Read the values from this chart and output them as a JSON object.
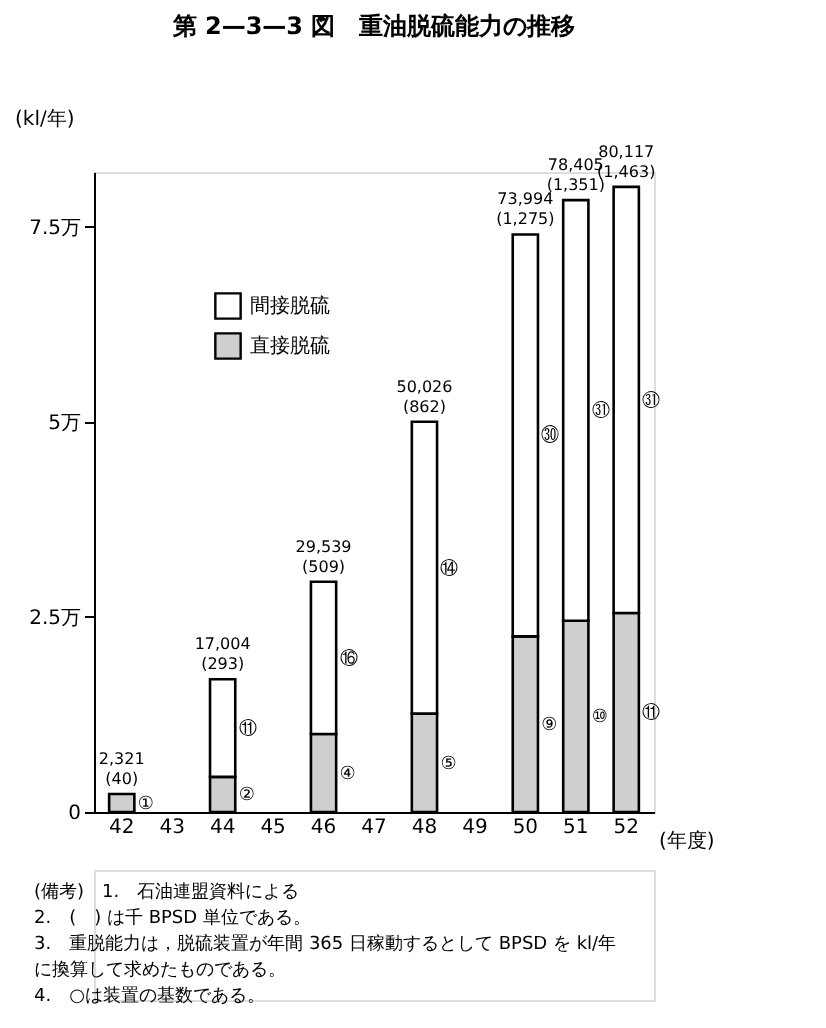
{
  "chart_data": {
    "type": "bar",
    "title": "第 2—3—3 図　重油脱硫能力の推移",
    "ylabel": "(kl/年)",
    "xlabel": "(年度)",
    "categories": [
      "42",
      "43",
      "44",
      "45",
      "46",
      "47",
      "48",
      "49",
      "50",
      "51",
      "52"
    ],
    "stacked": true,
    "series": [
      {
        "name": "直接脱硫",
        "color": "#cfcfcf",
        "values": [
          0.23,
          null,
          0.45,
          null,
          1.0,
          null,
          1.26,
          null,
          2.25,
          2.45,
          2.55
        ],
        "value_labels": [
          "①",
          null,
          "②",
          null,
          "④",
          null,
          "⑤",
          null,
          "⑨",
          "⑩",
          "⑪"
        ]
      },
      {
        "name": "間接脱硫",
        "color": "#ffffff",
        "values": [
          null,
          null,
          1.25,
          null,
          1.95,
          null,
          3.74,
          null,
          5.15,
          5.39,
          5.46
        ],
        "value_labels": [
          null,
          null,
          "⑪",
          null,
          "⑯",
          null,
          "⑭",
          null,
          "㉚",
          "㉛",
          "㉛"
        ]
      }
    ],
    "totals": [
      "2,321\n(40)",
      null,
      "17,004\n(293)",
      null,
      "29,539\n(509)",
      null,
      "50,026\n(862)",
      null,
      "73,994\n(1,275)",
      "78,405\n(1,351)",
      "80,117\n(1,463)"
    ],
    "ylim": [
      0,
      8.2
    ],
    "yticks": [
      0,
      {
        "value": 2.5,
        "label": "2.5万"
      },
      {
        "value": 5,
        "label": "5万"
      },
      {
        "value": 7.5,
        "label": "7.5万"
      }
    ],
    "grid": false,
    "legend": "top left",
    "annotations": [
      "(備考)　1.　石油連盟資料による",
      "2.　(　) は千 BPSD 単位である。",
      "3.　重脱能力は，脱硫装置が年間 365 日稼動するとして BPSD を kl/年",
      "に換算して求めたものである。",
      "4.　○は装置の基数である。"
    ]
  }
}
